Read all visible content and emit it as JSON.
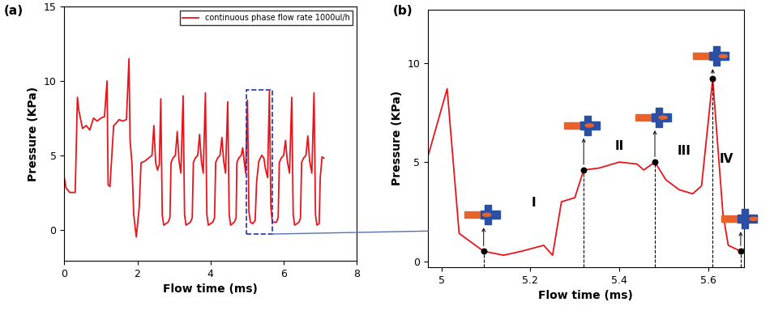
{
  "chart_data": [
    {
      "type": "line",
      "title": "(a)",
      "x_label": "Flow time (ms)",
      "y_label": "Pressure (KPa)",
      "x": [
        0,
        0.05,
        0.15,
        0.3,
        0.36,
        0.4,
        0.5,
        0.6,
        0.7,
        0.8,
        0.9,
        1.0,
        1.1,
        1.17,
        1.2,
        1.25,
        1.35,
        1.4,
        1.5,
        1.6,
        1.7,
        1.77,
        1.8,
        1.85,
        1.9,
        1.97,
        2.05,
        2.1,
        2.2,
        2.3,
        2.4,
        2.45,
        2.5,
        2.55,
        2.6,
        2.64,
        2.68,
        2.72,
        2.84,
        2.89,
        2.92,
        2.97,
        3.04,
        3.09,
        3.14,
        3.19,
        3.25,
        3.29,
        3.33,
        3.45,
        3.5,
        3.53,
        3.58,
        3.65,
        3.7,
        3.75,
        3.8,
        3.86,
        3.9,
        3.94,
        4.06,
        4.11,
        4.14,
        4.19,
        4.26,
        4.31,
        4.36,
        4.41,
        4.47,
        4.51,
        4.55,
        4.65,
        4.7,
        4.72,
        4.77,
        4.84,
        4.88,
        4.92,
        4.96,
        5.01,
        5.05,
        5.09,
        5.15,
        5.22,
        5.26,
        5.32,
        5.4,
        5.46,
        5.5,
        5.56,
        5.61,
        5.65,
        5.69,
        5.8,
        5.85,
        5.88,
        5.93,
        6.0,
        6.05,
        6.1,
        6.16,
        6.22,
        6.26,
        6.3,
        6.42,
        6.46,
        6.49,
        6.54,
        6.61,
        6.66,
        6.71,
        6.77,
        6.83,
        6.87,
        6.91,
        6.97,
        7.0,
        7.05,
        7.1
      ],
      "series": [
        {
          "name": "continuous phase flow rate 1000ul/h",
          "color": "#e8141b",
          "values": [
            3.5,
            2.8,
            2.5,
            2.5,
            8.9,
            8.0,
            6.8,
            7.0,
            6.7,
            7.5,
            7.3,
            7.5,
            7.6,
            10.0,
            3.0,
            2.9,
            7.0,
            7.1,
            7.4,
            7.3,
            7.4,
            11.5,
            6.0,
            4.5,
            1.0,
            -0.5,
            1.5,
            4.5,
            4.6,
            4.8,
            5.0,
            7.0,
            4.5,
            4.0,
            4.4,
            8.8,
            1.0,
            0.3,
            0.5,
            0.8,
            4.5,
            4.8,
            5.0,
            6.6,
            4.6,
            3.8,
            9.0,
            1.0,
            0.3,
            0.5,
            0.8,
            4.5,
            4.8,
            5.0,
            6.4,
            4.6,
            3.8,
            9.2,
            1.0,
            0.3,
            0.5,
            0.8,
            4.5,
            4.8,
            5.0,
            6.2,
            4.6,
            3.8,
            8.6,
            1.0,
            0.3,
            0.5,
            0.8,
            4.5,
            4.8,
            5.0,
            5.5,
            4.6,
            3.8,
            8.7,
            1.2,
            0.5,
            0.4,
            0.6,
            3.2,
            4.6,
            5.0,
            4.8,
            4.1,
            3.5,
            9.3,
            1.5,
            0.5,
            0.5,
            0.8,
            4.5,
            4.8,
            5.0,
            6.0,
            4.6,
            3.8,
            8.9,
            1.0,
            0.3,
            0.5,
            0.8,
            4.5,
            4.8,
            5.0,
            6.3,
            4.6,
            3.8,
            9.2,
            1.0,
            0.3,
            0.4,
            3.5,
            4.9,
            4.8
          ]
        }
      ],
      "legend": "upper right",
      "xlim": [
        0,
        8
      ],
      "xticks": [
        0,
        2,
        4,
        6,
        8
      ],
      "ylim": [
        -2.1,
        15
      ],
      "yticks": [
        0,
        5,
        10,
        15
      ]
    },
    {
      "type": "line",
      "title": "(b)",
      "x_label": "Flow time (ms)",
      "y_label": "Pressure (KPa)",
      "color": "#e8141b",
      "x": [
        4.97,
        5.013,
        5.04,
        5.095,
        5.14,
        5.18,
        5.23,
        5.25,
        5.27,
        5.3,
        5.32,
        5.355,
        5.4,
        5.44,
        5.455,
        5.48,
        5.505,
        5.535,
        5.565,
        5.585,
        5.61,
        5.633,
        5.645,
        5.673,
        5.68
      ],
      "values": [
        5.3,
        8.7,
        1.4,
        0.5,
        0.3,
        0.5,
        0.8,
        0.3,
        3.0,
        3.2,
        4.6,
        4.7,
        5.0,
        4.9,
        4.6,
        5.0,
        4.1,
        3.6,
        3.4,
        3.8,
        9.2,
        2.4,
        0.8,
        0.5,
        0.6
      ],
      "marked_points": {
        "x": [
          5.095,
          5.32,
          5.48,
          5.61,
          5.673
        ],
        "values": [
          0.5,
          4.6,
          5.0,
          9.2,
          0.5
        ]
      },
      "annotations": [
        "I",
        "II",
        "III",
        "IV"
      ],
      "xlim": [
        4.97,
        5.68
      ],
      "xticks": [
        5,
        5.2,
        5.4,
        5.6
      ],
      "ylim": [
        -0.3,
        12.7
      ],
      "yticks": [
        0,
        5,
        10
      ]
    }
  ]
}
